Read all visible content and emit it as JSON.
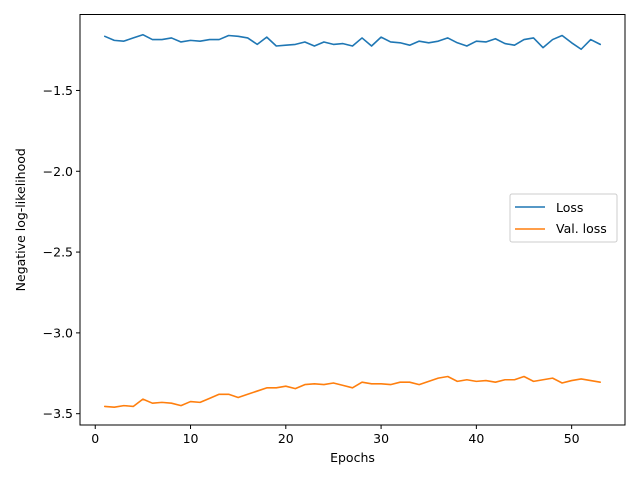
{
  "chart_data": {
    "type": "line",
    "title": "",
    "xlabel": "Epochs",
    "ylabel": "Negative log-likelihood",
    "xlim": [
      -1.6,
      55.6
    ],
    "ylim": [
      -3.57,
      -1.03
    ],
    "xticks": [
      0,
      10,
      20,
      30,
      40,
      50
    ],
    "yticks": [
      -1.5,
      -2.0,
      -2.5,
      -3.0,
      -3.5
    ],
    "xtick_labels": [
      "0",
      "10",
      "20",
      "30",
      "40",
      "50"
    ],
    "ytick_labels": [
      "−1.5",
      "−2.0",
      "−2.5",
      "−3.0",
      "−3.5"
    ],
    "grid": false,
    "legend_position": "center-right",
    "x": [
      1,
      2,
      3,
      4,
      5,
      6,
      7,
      8,
      9,
      10,
      11,
      12,
      13,
      14,
      15,
      16,
      17,
      18,
      19,
      20,
      21,
      22,
      23,
      24,
      25,
      26,
      27,
      28,
      29,
      30,
      31,
      32,
      33,
      34,
      35,
      36,
      37,
      38,
      39,
      40,
      41,
      42,
      43,
      44,
      45,
      46,
      47,
      48,
      49,
      50,
      51,
      52,
      53
    ],
    "series": [
      {
        "name": "Loss",
        "color": "#1f77b4",
        "values": [
          -1.165,
          -1.19,
          -1.195,
          -1.175,
          -1.155,
          -1.185,
          -1.185,
          -1.175,
          -1.2,
          -1.19,
          -1.195,
          -1.185,
          -1.185,
          -1.16,
          -1.165,
          -1.175,
          -1.215,
          -1.17,
          -1.225,
          -1.22,
          -1.215,
          -1.2,
          -1.225,
          -1.2,
          -1.215,
          -1.21,
          -1.225,
          -1.175,
          -1.225,
          -1.17,
          -1.2,
          -1.205,
          -1.22,
          -1.195,
          -1.205,
          -1.195,
          -1.175,
          -1.205,
          -1.225,
          -1.195,
          -1.2,
          -1.18,
          -1.21,
          -1.22,
          -1.185,
          -1.175,
          -1.235,
          -1.185,
          -1.16,
          -1.205,
          -1.245,
          -1.185,
          -1.215
        ]
      },
      {
        "name": "Val. loss",
        "color": "#ff7f0e",
        "values": [
          -3.455,
          -3.46,
          -3.45,
          -3.455,
          -3.41,
          -3.435,
          -3.43,
          -3.435,
          -3.45,
          -3.425,
          -3.43,
          -3.405,
          -3.38,
          -3.38,
          -3.4,
          -3.38,
          -3.36,
          -3.34,
          -3.34,
          -3.33,
          -3.345,
          -3.32,
          -3.315,
          -3.32,
          -3.31,
          -3.325,
          -3.34,
          -3.305,
          -3.315,
          -3.315,
          -3.32,
          -3.305,
          -3.305,
          -3.32,
          -3.3,
          -3.28,
          -3.27,
          -3.3,
          -3.29,
          -3.3,
          -3.295,
          -3.305,
          -3.29,
          -3.29,
          -3.27,
          -3.3,
          -3.29,
          -3.28,
          -3.31,
          -3.295,
          -3.285,
          -3.295,
          -3.305
        ]
      }
    ]
  }
}
